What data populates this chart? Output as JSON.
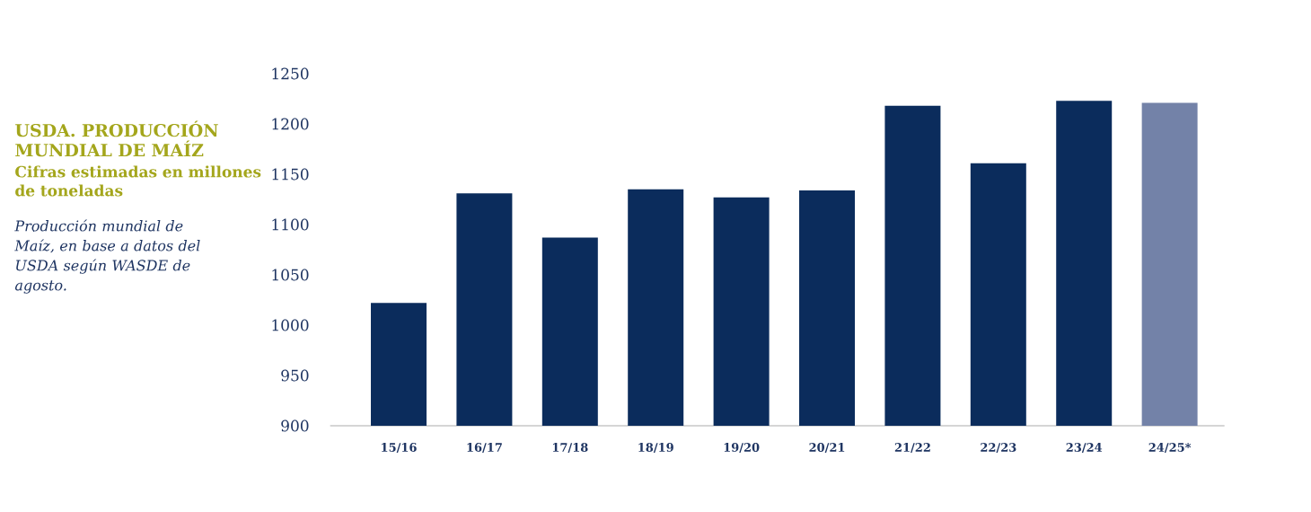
{
  "chart_data": {
    "type": "bar",
    "title": "USDA. PRODUCCIÓN MUNDIAL DE MAÍZ",
    "subtitle": "Cifras estimadas en millones de toneladas",
    "annotations": [
      "Producción mundial de Maíz, en base a datos del USDA según WASDE de agosto."
    ],
    "categories": [
      "15/16",
      "16/17",
      "17/18",
      "18/19",
      "19/20",
      "20/21",
      "21/22",
      "22/23",
      "23/24",
      "24/25*"
    ],
    "values": [
      1022,
      1131,
      1087,
      1135,
      1127,
      1134,
      1218,
      1161,
      1223,
      1221
    ],
    "colors": [
      "#0b2c5c",
      "#0b2c5c",
      "#0b2c5c",
      "#0b2c5c",
      "#0b2c5c",
      "#0b2c5c",
      "#0b2c5c",
      "#0b2c5c",
      "#0b2c5c",
      "#7382a8"
    ],
    "ylim": [
      900,
      1250
    ],
    "yticks": [
      900,
      950,
      1000,
      1050,
      1100,
      1150,
      1200,
      1250
    ],
    "grid": false
  }
}
